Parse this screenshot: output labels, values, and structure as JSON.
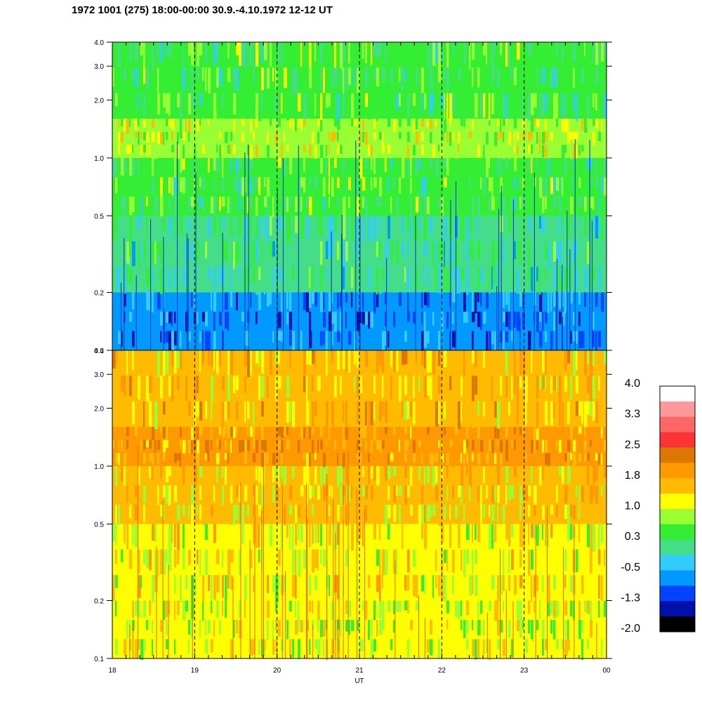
{
  "title": "1972 1001 (275) 18:00-00:00 30.9.-4.10.1972  12-12 UT",
  "chart_data": {
    "type": "heatmap",
    "xlabel": "UT",
    "x_ticks": [
      "18",
      "19",
      "20",
      "21",
      "22",
      "23",
      "00"
    ],
    "x_range": [
      18,
      24
    ],
    "y_scale": "log",
    "y_range": [
      0.1,
      4.0
    ],
    "grid": "dashed vertical lines at each hour",
    "panels": [
      {
        "name": "upper",
        "y_ticks": [
          "4.0",
          "3.0",
          "2.0",
          "1.0",
          "0.5",
          "0.2",
          "0.1"
        ],
        "dominant_level_by_band": [
          {
            "freq": [
              0.1,
              0.2
            ],
            "level": -0.9
          },
          {
            "freq": [
              0.2,
              0.5
            ],
            "level": 0.0
          },
          {
            "freq": [
              0.5,
              1.0
            ],
            "level": 0.4
          },
          {
            "freq": [
              1.0,
              1.6
            ],
            "level": 0.9
          },
          {
            "freq": [
              1.6,
              4.0
            ],
            "level": 0.4
          }
        ]
      },
      {
        "name": "lower",
        "y_ticks": [
          "4.0",
          "3.0",
          "2.0",
          "1.0",
          "0.5",
          "0.2",
          "0.1"
        ],
        "dominant_level_by_band": [
          {
            "freq": [
              0.1,
              0.2
            ],
            "level": 1.0
          },
          {
            "freq": [
              0.2,
              0.5
            ],
            "level": 1.2
          },
          {
            "freq": [
              0.5,
              1.0
            ],
            "level": 1.4
          },
          {
            "freq": [
              1.0,
              1.6
            ],
            "level": 1.9
          },
          {
            "freq": [
              1.6,
              4.0
            ],
            "level": 1.6
          }
        ]
      }
    ],
    "colorbar": {
      "labels": [
        "4.0",
        "3.3",
        "2.5",
        "1.8",
        "1.0",
        "0.3",
        "-0.5",
        "-1.3",
        "-2.0"
      ],
      "colors": [
        "#ffffff",
        "#ff9999",
        "#ff6666",
        "#ff3333",
        "#dd7700",
        "#ff9900",
        "#ffbb00",
        "#ffff00",
        "#99ff33",
        "#33ee33",
        "#44dd88",
        "#33ccff",
        "#0099ff",
        "#0044ff",
        "#0011aa",
        "#000000"
      ]
    }
  }
}
